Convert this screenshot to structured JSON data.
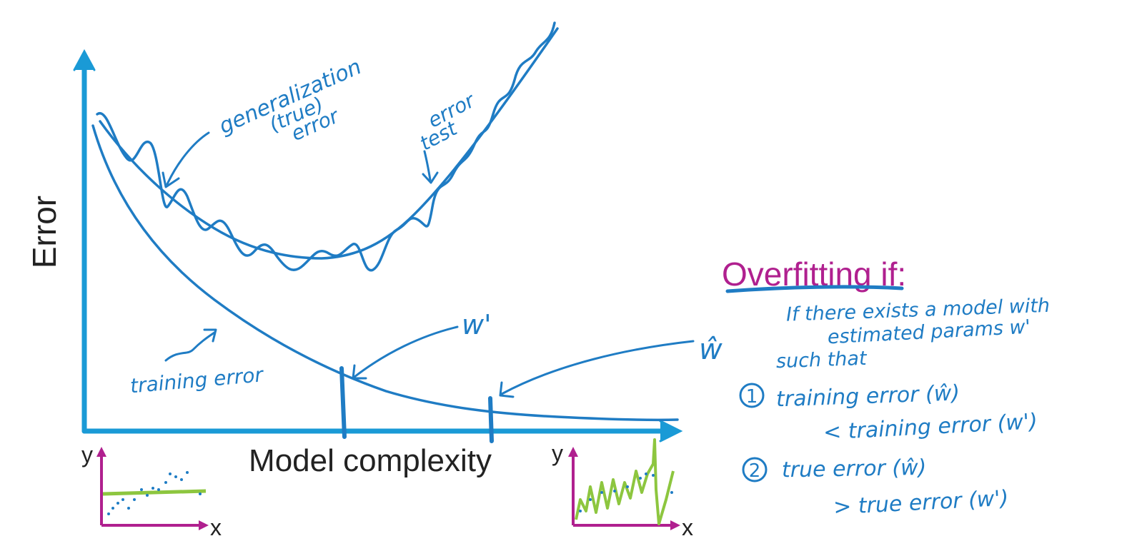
{
  "colors": {
    "axis": "#1a9ad6",
    "ink": "#1f7cc4",
    "magenta": "#b0208f",
    "green": "#8dc63f"
  },
  "main_plot": {
    "y_label": "Error",
    "x_label": "Model complexity"
  },
  "annotations": {
    "generalization_line1": "generalization",
    "generalization_line2": "(true)",
    "generalization_line3": "error",
    "test_line1": "test",
    "test_line2": "error",
    "training": "training error",
    "w_prime": "w'",
    "w_hat": "ŵ"
  },
  "mini_plots": {
    "left_y": "y",
    "left_x": "x",
    "right_y": "y",
    "right_x": "x"
  },
  "overfitting": {
    "title_emph": "Overfitting",
    "title_rest": " if:",
    "line1": "If there exists a model with",
    "line2": "estimated params w'",
    "line3": "such that",
    "c1_num": "1",
    "c1_text": "training error (ŵ)",
    "c1_cont": "< training error (w')",
    "c2_num": "2",
    "c2_text": "true error (ŵ)",
    "c2_cont": "> true error (w')"
  }
}
